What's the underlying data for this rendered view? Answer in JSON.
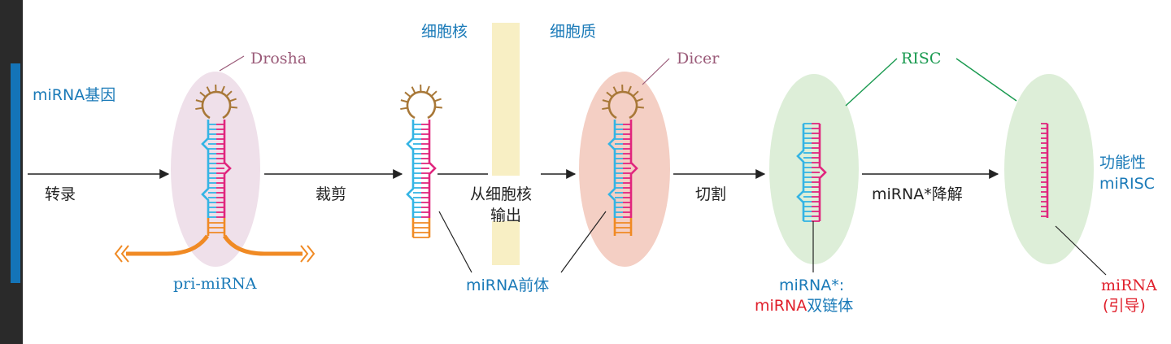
{
  "labels": {
    "mirna_gene": "miRNA基因",
    "drosha": "Drosha",
    "pri_mirna": "pri-miRNA",
    "nucleus": "细胞核",
    "cytoplasm": "细胞质",
    "transcription": "转录",
    "cropping": "裁剪",
    "export_line1": "从细胞核",
    "export_line2": "输出",
    "pre_mirna": "miRNA前体",
    "dicer": "Dicer",
    "cleavage": "切割",
    "risc": "RISC",
    "star_degradation": "miRNA*降解",
    "duplex_line1": "miRNA*:",
    "duplex_red": "miRNA",
    "duplex_blue": "双链体",
    "functional_line1": "功能性",
    "functional_line2": "miRISC",
    "guide_line1": "miRNA",
    "guide_line2": "(引导)"
  },
  "colors": {
    "blue_text": "#1a7ab8",
    "red_text": "#e0202c",
    "drosha_text": "#9a5a78",
    "blue_strand": "#34b4e4",
    "pink_strand": "#e0267e",
    "loop": "#a87838",
    "orange_strand": "#f08a24",
    "drosha_ellipse": "#efe0ea",
    "dicer_ellipse": "#f4cfc4",
    "risc_ellipse": "#ddeed8",
    "nucleus_bar": "#f8efc4",
    "risc_line": "#1a9a50"
  }
}
